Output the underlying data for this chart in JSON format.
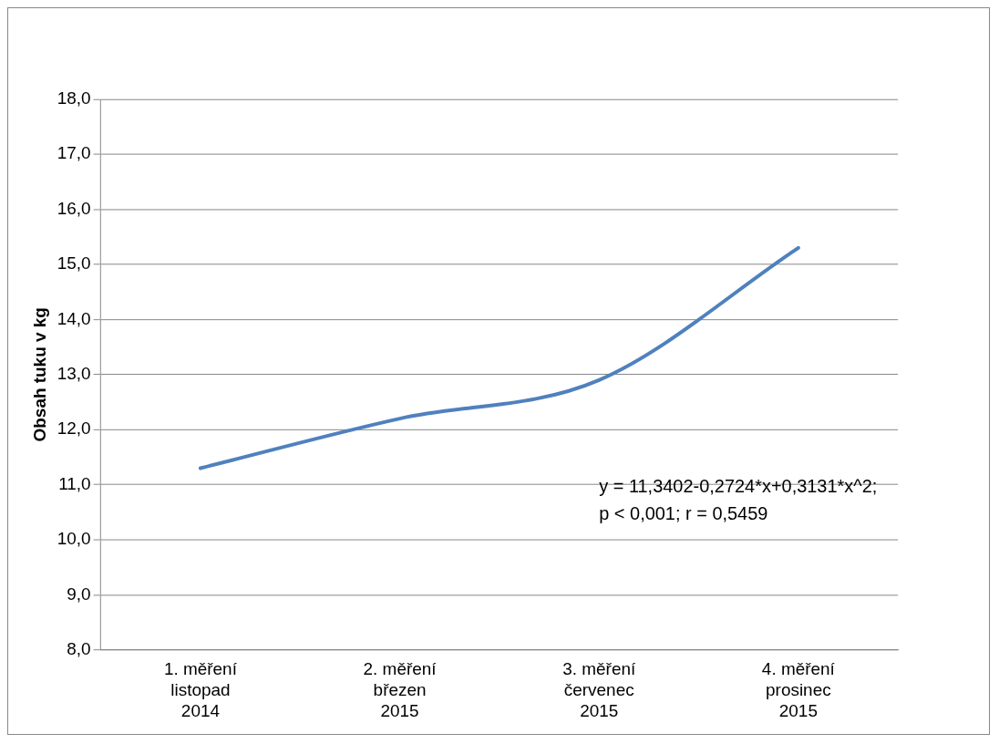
{
  "chart_data": {
    "type": "line",
    "ylabel": "Obsah tuku v kg",
    "categories": [
      "1. měření\nlistopad\n2014",
      "2. měření\nbřezen\n2015",
      "3. měření\nčervenec\n2015",
      "4. měření\nprosinec\n2015"
    ],
    "series": [
      {
        "color": "#4f81bd",
        "values": [
          11.3,
          12.2,
          12.9,
          15.3
        ]
      }
    ],
    "ylim": [
      8,
      18
    ],
    "yticks": [
      {
        "value": 8,
        "label": "8,0"
      },
      {
        "value": 9,
        "label": "9,0"
      },
      {
        "value": 10,
        "label": "10,0"
      },
      {
        "value": 11,
        "label": "11,0"
      },
      {
        "value": 12,
        "label": "12,0"
      },
      {
        "value": 13,
        "label": "13,0"
      },
      {
        "value": 14,
        "label": "14,0"
      },
      {
        "value": 15,
        "label": "15,0"
      },
      {
        "value": 16,
        "label": "16,0"
      },
      {
        "value": 17,
        "label": "17,0"
      },
      {
        "value": 18,
        "label": "18,0"
      }
    ],
    "grid": "y",
    "legend": false,
    "marker": "none",
    "line_style": "solid",
    "annotations": [
      "y = 11,3402-0,2724*x+0,3131*x^2;\np < 0,001; r = 0,5459"
    ]
  }
}
